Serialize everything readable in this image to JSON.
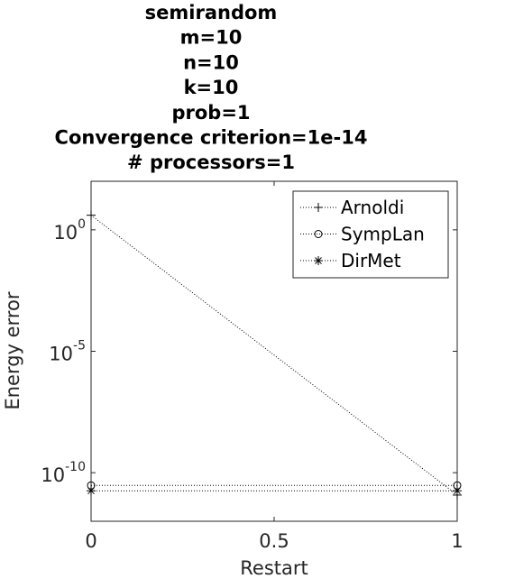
{
  "chart_data": {
    "type": "line",
    "title_lines": [
      "semirandom",
      "m=10",
      "n=10",
      "k=10",
      "prob=1",
      "Convergence criterion=1e-14",
      "# processors=1"
    ],
    "xlabel": "Restart",
    "ylabel": "Energy error",
    "x_scale": "linear",
    "y_scale": "log",
    "xlim": [
      0,
      1
    ],
    "ylim": [
      1e-12,
      100.0
    ],
    "x_ticks": [
      0,
      0.5,
      1
    ],
    "x_tick_labels": [
      "0",
      "0.5",
      "1"
    ],
    "y_ticks": [
      1.0,
      1e-05,
      1e-10
    ],
    "y_tick_labels": [
      {
        "base": "10",
        "exp": "0"
      },
      {
        "base": "10",
        "exp": "-5"
      },
      {
        "base": "10",
        "exp": "-10"
      }
    ],
    "grid": false,
    "legend_position": "top-right",
    "series": [
      {
        "name": "Arnoldi",
        "marker": "plus",
        "x": [
          0,
          1
        ],
        "y": [
          4,
          1.2e-11
        ]
      },
      {
        "name": "SympLan",
        "marker": "circle",
        "x": [
          0,
          1
        ],
        "y": [
          3e-11,
          3e-11
        ]
      },
      {
        "name": "DirMet",
        "marker": "asterisk",
        "x": [
          0,
          1
        ],
        "y": [
          1.8e-11,
          1.8e-11
        ]
      }
    ]
  }
}
